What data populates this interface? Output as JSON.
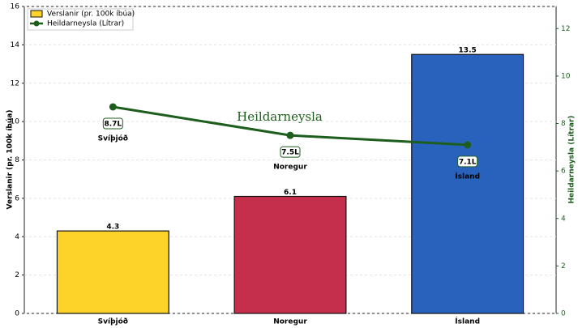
{
  "chart_data": {
    "type": "bar",
    "categories": [
      "Svíþjóð",
      "Noregur",
      "Ísland"
    ],
    "ylabel": "Verslanir (pr. 100k íbúa)",
    "y2label": "Heildarneysla (Lítrar)",
    "annotation": "Heildarneysla",
    "ylim": [
      0,
      16
    ],
    "yticks": [
      0,
      2,
      4,
      6,
      8,
      10,
      12,
      14,
      16
    ],
    "y2lim": [
      0,
      12.93
    ],
    "y2ticks": [
      0,
      2,
      4,
      6,
      8,
      10,
      12
    ],
    "grid": true,
    "legend": "upper left",
    "series": [
      {
        "name": "Verslanir (pr. 100k íbúa)",
        "type": "bar",
        "colors": [
          "#fdd32a",
          "#c62f4b",
          "#2862bd"
        ],
        "values": [
          4.3,
          6.1,
          13.5
        ]
      },
      {
        "name": "Heildarneysla (Lítrar)",
        "type": "line",
        "axis": "y2",
        "color": "#1d5e1d",
        "values": [
          8.7,
          7.5,
          7.1
        ],
        "value_labels": [
          "8.7L",
          "7.5L",
          "7.1L"
        ]
      }
    ]
  }
}
